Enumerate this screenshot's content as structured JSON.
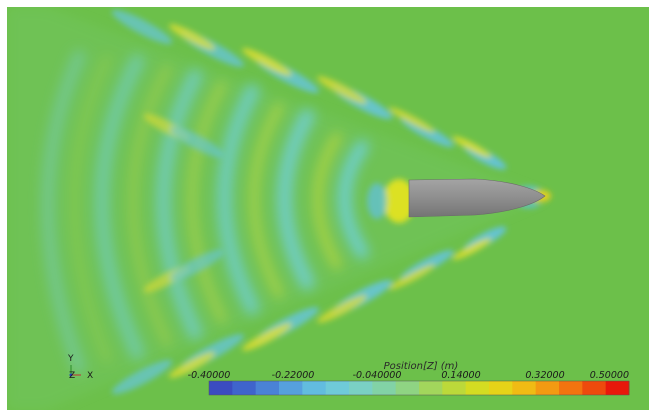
{
  "scene": {
    "background_color": "#6cc04a",
    "hull_color": "#8c8c8c"
  },
  "axes_triad": {
    "y_label": "Y",
    "z_label": "Z",
    "x_label": "X"
  },
  "color_bar": {
    "title": "Position[Z] (m)",
    "min": -0.4,
    "max": 0.5,
    "tick_labels": [
      "-0.40000",
      "-0.22000",
      "-0.040000",
      "0.14000",
      "0.32000",
      "0.50000"
    ],
    "tick_values": [
      -0.4,
      -0.22,
      -0.04,
      0.14,
      0.32,
      0.5
    ],
    "colors": [
      "#3b4cc0",
      "#3f64cc",
      "#4a82d6",
      "#56a0de",
      "#62bcdf",
      "#6fcad8",
      "#7ad0c4",
      "#82d2a6",
      "#8fd483",
      "#a2d65c",
      "#bcd93a",
      "#d4dc22",
      "#e6d318",
      "#f0bb14",
      "#f39a12",
      "#f2740f",
      "#ee4a0d",
      "#e8180b"
    ]
  }
}
